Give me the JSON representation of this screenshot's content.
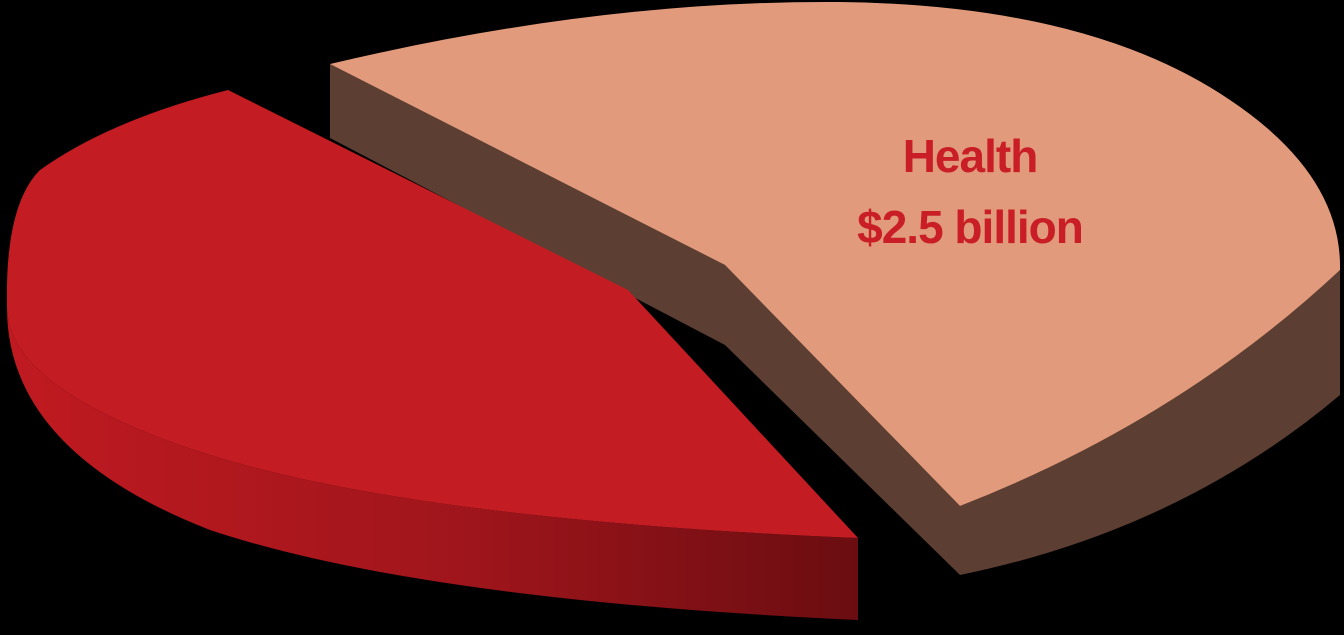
{
  "chart_data": {
    "type": "pie",
    "slices": [
      {
        "label": "Health",
        "value_label": "$2.5 billion",
        "top_color": "#e19a7b",
        "side_color": "#5c3e32"
      },
      {
        "label": "",
        "value_label": "",
        "top_color": "#c31c23",
        "side_color": "#8e1419"
      }
    ],
    "label_color": "#c91e26",
    "background": "#000000"
  }
}
